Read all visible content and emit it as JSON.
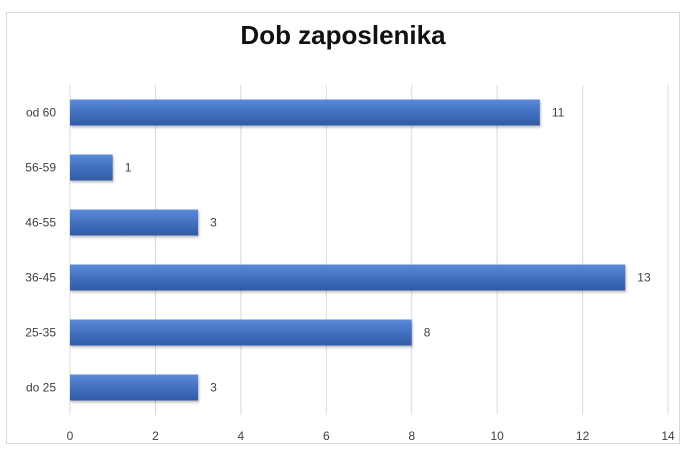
{
  "chart_data": {
    "type": "bar",
    "orientation": "horizontal",
    "title": "Dob zaposlenika",
    "categories": [
      "od 60",
      "56-59",
      "46-55",
      "36-45",
      "25-35",
      "do 25"
    ],
    "values": [
      11,
      1,
      3,
      13,
      8,
      3
    ],
    "xlim": [
      0,
      14
    ],
    "xticks": [
      "0",
      "2",
      "4",
      "6",
      "8",
      "10",
      "12",
      "14"
    ],
    "grid": true,
    "legend": "none",
    "bar_color": "#4472C4"
  }
}
